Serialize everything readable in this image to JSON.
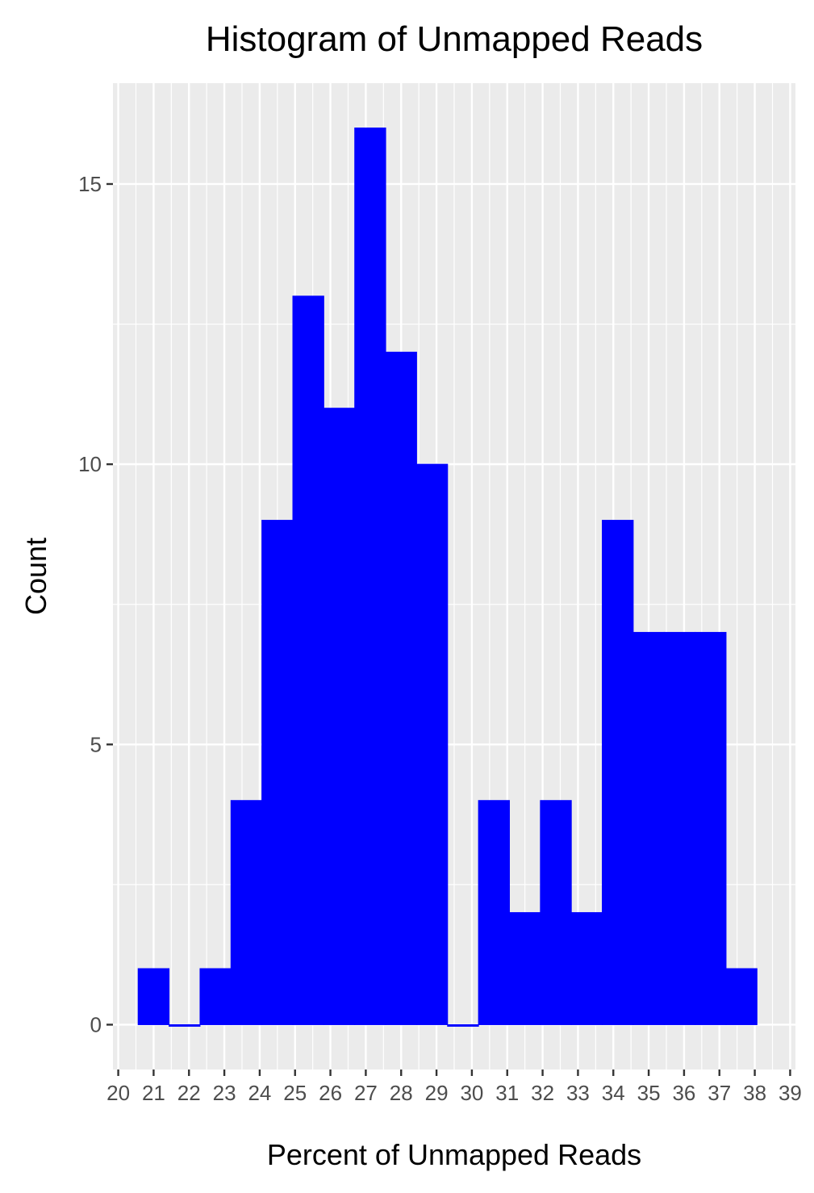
{
  "chart_data": {
    "type": "bar",
    "title": "Histogram of Unmapped Reads",
    "xlabel": "Percent of Unmapped Reads",
    "ylabel": "Count",
    "x_ticks": [
      "20",
      "21",
      "22",
      "23",
      "24",
      "25",
      "26",
      "27",
      "28",
      "29",
      "30",
      "31",
      "32",
      "33",
      "34",
      "35",
      "36",
      "37",
      "38",
      "39"
    ],
    "y_ticks": [
      "0",
      "5",
      "10",
      "15"
    ],
    "bin_width": 0.875,
    "bins": [
      {
        "x": 21.0,
        "count": 1
      },
      {
        "x": 21.875,
        "count": 0
      },
      {
        "x": 22.75,
        "count": 1
      },
      {
        "x": 23.625,
        "count": 4
      },
      {
        "x": 24.5,
        "count": 9
      },
      {
        "x": 25.375,
        "count": 13
      },
      {
        "x": 26.25,
        "count": 11
      },
      {
        "x": 27.125,
        "count": 16
      },
      {
        "x": 28.0,
        "count": 12
      },
      {
        "x": 28.875,
        "count": 10
      },
      {
        "x": 29.75,
        "count": 0
      },
      {
        "x": 30.625,
        "count": 4
      },
      {
        "x": 31.5,
        "count": 2
      },
      {
        "x": 32.375,
        "count": 4
      },
      {
        "x": 33.25,
        "count": 2
      },
      {
        "x": 34.125,
        "count": 9
      },
      {
        "x": 35.0,
        "count": 7
      },
      {
        "x": 35.875,
        "count": 7
      },
      {
        "x": 36.75,
        "count": 7
      },
      {
        "x": 37.625,
        "count": 1
      }
    ],
    "xlim": [
      19.85,
      39.15
    ],
    "ylim": [
      -0.8,
      16.8
    ],
    "fill_color": "#0000ff",
    "panel_color": "#ebebeb",
    "grid": true,
    "legend": "none"
  }
}
